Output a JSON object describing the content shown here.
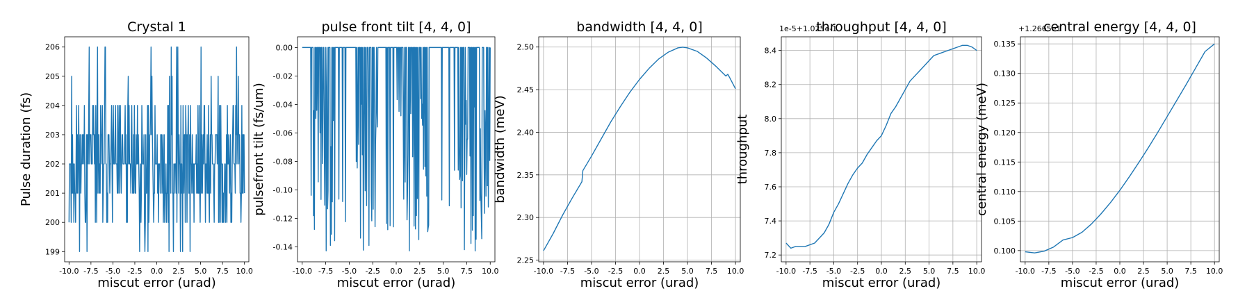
{
  "chart_data": [
    {
      "type": "line",
      "title": "Crystal 1",
      "xlabel": "miscut error (urad)",
      "ylabel": "Pulse duration (fs)",
      "xlim": [
        -10.5,
        10.5
      ],
      "ylim": [
        198.65,
        206.35
      ],
      "xticks": [
        "-10.0",
        "-7.5",
        "-5.0",
        "-2.5",
        "0.0",
        "2.5",
        "5.0",
        "7.5",
        "10.0"
      ],
      "yticks": [
        "199",
        "200",
        "201",
        "202",
        "203",
        "204",
        "205",
        "206"
      ],
      "offset_text": "",
      "grid": false,
      "color": "#1f77b4",
      "noise": {
        "pattern": "discrete",
        "levels": [
          199,
          200,
          201,
          202,
          203,
          204,
          205,
          206
        ],
        "center": 202,
        "spread": 1.3,
        "n": 401,
        "seed": 11
      }
    },
    {
      "type": "line",
      "title": "pulse front tilt [4, 4, 0]",
      "xlabel": "miscut error (urad)",
      "ylabel": "pulsefront tilt (fs/um)",
      "xlim": [
        -10.5,
        10.5
      ],
      "ylim": [
        -0.1505,
        0.0075
      ],
      "xticks": [
        "-10.0",
        "-7.5",
        "-5.0",
        "-2.5",
        "0.0",
        "2.5",
        "5.0",
        "7.5",
        "10.0"
      ],
      "yticks": [
        "-0.14",
        "-0.12",
        "-0.10",
        "-0.08",
        "-0.06",
        "-0.04",
        "-0.02",
        "0.00"
      ],
      "offset_text": "",
      "grid": false,
      "color": "#1f77b4",
      "noise": {
        "pattern": "spikes",
        "min": -0.143,
        "bands": [
          [
            -9.0,
            -6.5
          ],
          [
            -4.5,
            -2.0
          ],
          [
            0.0,
            3.5
          ],
          [
            6.5,
            10.0
          ]
        ],
        "n": 401,
        "seed": 23
      }
    },
    {
      "type": "line",
      "title": "bandwidth [4, 4, 0]",
      "xlabel": "miscut error (urad)",
      "ylabel": "bandwidth (meV)",
      "xlim": [
        -10.5,
        10.5
      ],
      "ylim": [
        2.248,
        2.512
      ],
      "xticks": [
        "-10.0",
        "-7.5",
        "-5.0",
        "-2.5",
        "0.0",
        "2.5",
        "5.0",
        "7.5",
        "10.0"
      ],
      "yticks": [
        "2.25",
        "2.30",
        "2.35",
        "2.40",
        "2.45",
        "2.50"
      ],
      "offset_text": "",
      "grid": true,
      "color": "#1f77b4",
      "x": [
        -10.0,
        -9.0,
        -8.0,
        -7.0,
        -6.0,
        -5.9,
        -5.0,
        -4.0,
        -3.0,
        -2.0,
        -1.0,
        0.0,
        1.0,
        2.0,
        3.0,
        4.0,
        4.5,
        5.0,
        6.0,
        7.0,
        8.0,
        9.0,
        9.2,
        9.4,
        10.0
      ],
      "y": [
        2.261,
        2.281,
        2.303,
        2.323,
        2.342,
        2.355,
        2.372,
        2.392,
        2.412,
        2.43,
        2.447,
        2.462,
        2.475,
        2.486,
        2.494,
        2.499,
        2.4998,
        2.499,
        2.495,
        2.487,
        2.477,
        2.466,
        2.468,
        2.464,
        2.451
      ]
    },
    {
      "type": "line",
      "title": "throughput [4, 4, 0]",
      "xlabel": "miscut error (urad)",
      "ylabel": "throughput",
      "xlim": [
        -10.5,
        10.5
      ],
      "ylim": [
        7.16,
        8.48
      ],
      "xticks": [
        "-10.0",
        "-7.5",
        "-5.0",
        "-2.5",
        "0.0",
        "2.5",
        "5.0",
        "7.5",
        "10.0"
      ],
      "yticks": [
        "7.2",
        "7.4",
        "7.6",
        "7.8",
        "8.0",
        "8.2",
        "8.4"
      ],
      "offset_text": "1e-5+1.025e-1",
      "grid": true,
      "color": "#1f77b4",
      "x": [
        -10.0,
        -9.5,
        -9.0,
        -8.0,
        -7.0,
        -6.5,
        -6.0,
        -5.5,
        -5.0,
        -4.5,
        -4.0,
        -3.5,
        -3.0,
        -2.5,
        -2.0,
        -1.5,
        -1.0,
        -0.5,
        0.0,
        0.5,
        1.0,
        1.5,
        2.0,
        2.5,
        3.0,
        3.5,
        4.0,
        4.5,
        5.0,
        5.5,
        6.0,
        6.5,
        7.0,
        7.5,
        8.0,
        8.5,
        9.0,
        9.5,
        10.0
      ],
      "y": [
        7.27,
        7.24,
        7.25,
        7.25,
        7.27,
        7.3,
        7.33,
        7.38,
        7.45,
        7.5,
        7.56,
        7.62,
        7.67,
        7.71,
        7.74,
        7.79,
        7.83,
        7.87,
        7.9,
        7.96,
        8.03,
        8.07,
        8.12,
        8.17,
        8.22,
        8.25,
        8.28,
        8.31,
        8.34,
        8.37,
        8.38,
        8.39,
        8.4,
        8.41,
        8.42,
        8.43,
        8.43,
        8.42,
        8.4
      ]
    },
    {
      "type": "line",
      "title": "central energy [4, 4, 0]",
      "xlabel": "miscut error (urad)",
      "ylabel": "central energy (meV)",
      "xlim": [
        -10.5,
        10.5
      ],
      "ylim": [
        0.0981,
        0.1362
      ],
      "xticks": [
        "-10.0",
        "-7.5",
        "-5.0",
        "-2.5",
        "0.0",
        "2.5",
        "5.0",
        "7.5",
        "10.0"
      ],
      "yticks": [
        "0.100",
        "0.105",
        "0.110",
        "0.115",
        "0.120",
        "0.125",
        "0.130",
        "0.135"
      ],
      "offset_text": "+1.2665e1",
      "grid": true,
      "color": "#1f77b4",
      "x": [
        -10.0,
        -9.0,
        -8.0,
        -7.0,
        -6.0,
        -5.0,
        -4.0,
        -3.0,
        -2.0,
        -1.0,
        0.0,
        1.0,
        2.0,
        3.0,
        4.0,
        5.0,
        6.0,
        7.0,
        8.0,
        9.0,
        10.0
      ],
      "y": [
        0.0998,
        0.0996,
        0.0999,
        0.1006,
        0.1018,
        0.1022,
        0.1031,
        0.1045,
        0.1062,
        0.1081,
        0.1102,
        0.1125,
        0.1149,
        0.1174,
        0.12,
        0.1227,
        0.1254,
        0.1281,
        0.1309,
        0.1337,
        0.135
      ]
    }
  ]
}
